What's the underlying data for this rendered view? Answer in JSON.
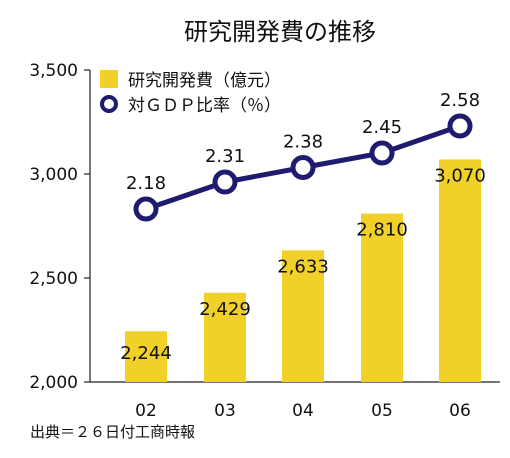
{
  "chart_data": {
    "type": "bar+line",
    "title": "研究開発費の推移",
    "categories": [
      "02",
      "03",
      "04",
      "05",
      "06"
    ],
    "series": [
      {
        "name": "研究開発費（億元）",
        "type": "bar",
        "axis": "left",
        "values": [
          2244,
          2429,
          2633,
          2810,
          3070
        ],
        "labels": [
          "2,244",
          "2,429",
          "2,633",
          "2,810",
          "3,070"
        ],
        "color": "#f2d02a"
      },
      {
        "name": "対ＧＤＰ比率（％）",
        "type": "line",
        "values": [
          2.18,
          2.31,
          2.38,
          2.45,
          2.58
        ],
        "labels": [
          "2.18",
          "2.31",
          "2.38",
          "2.45",
          "2.58"
        ],
        "color": "#1f1b6e"
      }
    ],
    "y_left": {
      "range": [
        2000,
        3500
      ],
      "ticks": [
        2000,
        2500,
        3000,
        3500
      ],
      "tick_labels": [
        "2,000",
        "2,500",
        "3,000",
        "3,500"
      ]
    },
    "grid": false,
    "legend_position": "top-left",
    "source": "出典＝２６日付工商時報"
  }
}
